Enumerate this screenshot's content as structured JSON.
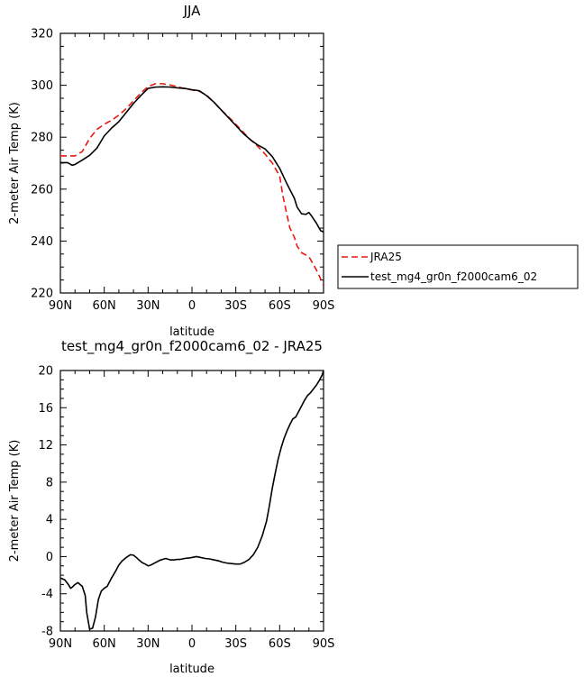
{
  "chart_data": [
    {
      "type": "line",
      "title": "JJA",
      "xlabel": "latitude",
      "ylabel": "2-meter Air Temp (K)",
      "x_ticks": [
        {
          "value": 90,
          "label": "90N"
        },
        {
          "value": 60,
          "label": "60N"
        },
        {
          "value": 30,
          "label": "30N"
        },
        {
          "value": 0,
          "label": "0"
        },
        {
          "value": -30,
          "label": "30S"
        },
        {
          "value": -60,
          "label": "60S"
        },
        {
          "value": -90,
          "label": "90S"
        }
      ],
      "y_ticks": [
        220,
        240,
        260,
        280,
        300,
        320
      ],
      "xlim": [
        90,
        -90
      ],
      "ylim": [
        220,
        320
      ],
      "grid": false,
      "legend": "right, outside plot",
      "series": [
        {
          "name": "JRA25",
          "color": "#e8190f",
          "dash": true,
          "x": [
            90,
            85,
            80,
            75,
            70,
            65,
            60,
            55,
            50,
            45,
            40,
            35,
            30,
            25,
            20,
            15,
            10,
            5,
            0,
            -5,
            -10,
            -15,
            -20,
            -25,
            -30,
            -35,
            -40,
            -45,
            -50,
            -55,
            -60,
            -62,
            -65,
            -67,
            -70,
            -72,
            -75,
            -80,
            -85,
            -90
          ],
          "values": [
            272.8,
            272.8,
            272.8,
            274.5,
            279.5,
            283.0,
            285.0,
            286.5,
            288.5,
            291.0,
            294.0,
            297.0,
            299.5,
            300.6,
            300.6,
            300.1,
            299.5,
            298.7,
            298.2,
            297.7,
            296.2,
            293.5,
            290.5,
            287.8,
            285.0,
            282.0,
            279.0,
            276.5,
            273.5,
            270.0,
            265.0,
            258.0,
            250.0,
            245.0,
            241.5,
            238.0,
            235.5,
            234.0,
            229.0,
            223.0
          ]
        },
        {
          "name": "test_mg4_gr0n_f2000cam6_02",
          "color": "#000000",
          "dash": false,
          "x": [
            90,
            85,
            82,
            80,
            75,
            70,
            65,
            60,
            55,
            50,
            45,
            40,
            35,
            30,
            25,
            20,
            15,
            10,
            5,
            0,
            -5,
            -10,
            -15,
            -20,
            -25,
            -30,
            -35,
            -40,
            -45,
            -50,
            -55,
            -60,
            -65,
            -70,
            -72,
            -75,
            -78,
            -80,
            -82,
            -85,
            -88,
            -90
          ],
          "values": [
            270.2,
            270.2,
            269.2,
            269.5,
            271.2,
            273.0,
            275.8,
            280.5,
            283.5,
            286.0,
            289.5,
            293.0,
            296.0,
            298.8,
            299.3,
            299.4,
            299.3,
            299.0,
            298.8,
            298.3,
            297.9,
            296.0,
            293.5,
            290.5,
            287.5,
            284.5,
            281.5,
            279.0,
            277.0,
            275.5,
            272.5,
            268.0,
            262.0,
            256.5,
            253.0,
            250.5,
            250.3,
            251.0,
            249.5,
            247.0,
            244.0,
            243.5
          ]
        }
      ]
    },
    {
      "type": "line",
      "title": "test_mg4_gr0n_f2000cam6_02 - JRA25",
      "xlabel": "latitude",
      "ylabel": "2-meter Air Temp (K)",
      "x_ticks": [
        {
          "value": 90,
          "label": "90N"
        },
        {
          "value": 60,
          "label": "60N"
        },
        {
          "value": 30,
          "label": "30N"
        },
        {
          "value": 0,
          "label": "0"
        },
        {
          "value": -30,
          "label": "30S"
        },
        {
          "value": -60,
          "label": "60S"
        },
        {
          "value": -90,
          "label": "90S"
        }
      ],
      "y_ticks": [
        -8,
        -4,
        0,
        4,
        8,
        12,
        16,
        20
      ],
      "xlim": [
        90,
        -90
      ],
      "ylim": [
        -8,
        20
      ],
      "grid": false,
      "series": [
        {
          "color": "#000000",
          "dash": false,
          "x": [
            90,
            87,
            85,
            83,
            82,
            80,
            78,
            75,
            73,
            72,
            70,
            68,
            66,
            64,
            62,
            60,
            58,
            55,
            52,
            50,
            48,
            45,
            42,
            40,
            38,
            36,
            34,
            32,
            30,
            28,
            25,
            22,
            20,
            18,
            15,
            12,
            10,
            8,
            5,
            2,
            0,
            -3,
            -6,
            -9,
            -12,
            -15,
            -18,
            -21,
            -24,
            -27,
            -30,
            -33,
            -36,
            -39,
            -42,
            -45,
            -48,
            -51,
            -53,
            -55,
            -57,
            -59,
            -61,
            -63,
            -65,
            -67,
            -69,
            -71,
            -73,
            -75,
            -77,
            -79,
            -81,
            -83,
            -85,
            -87,
            -89,
            -90
          ],
          "values": [
            -2.3,
            -2.5,
            -2.9,
            -3.4,
            -3.3,
            -3.0,
            -2.8,
            -3.2,
            -4.2,
            -6.0,
            -7.8,
            -7.7,
            -6.5,
            -4.6,
            -3.7,
            -3.4,
            -3.2,
            -2.3,
            -1.5,
            -0.9,
            -0.5,
            -0.1,
            0.2,
            0.15,
            -0.1,
            -0.4,
            -0.65,
            -0.8,
            -1.0,
            -0.9,
            -0.65,
            -0.4,
            -0.3,
            -0.2,
            -0.35,
            -0.35,
            -0.3,
            -0.3,
            -0.2,
            -0.15,
            -0.1,
            0.0,
            -0.1,
            -0.2,
            -0.25,
            -0.35,
            -0.45,
            -0.6,
            -0.7,
            -0.75,
            -0.8,
            -0.8,
            -0.6,
            -0.3,
            0.2,
            1.0,
            2.2,
            3.8,
            5.5,
            7.4,
            9.0,
            10.5,
            11.7,
            12.7,
            13.5,
            14.2,
            14.8,
            15.0,
            15.6,
            16.2,
            16.8,
            17.3,
            17.6,
            18.0,
            18.4,
            18.9,
            19.5,
            20.0
          ]
        }
      ]
    }
  ]
}
